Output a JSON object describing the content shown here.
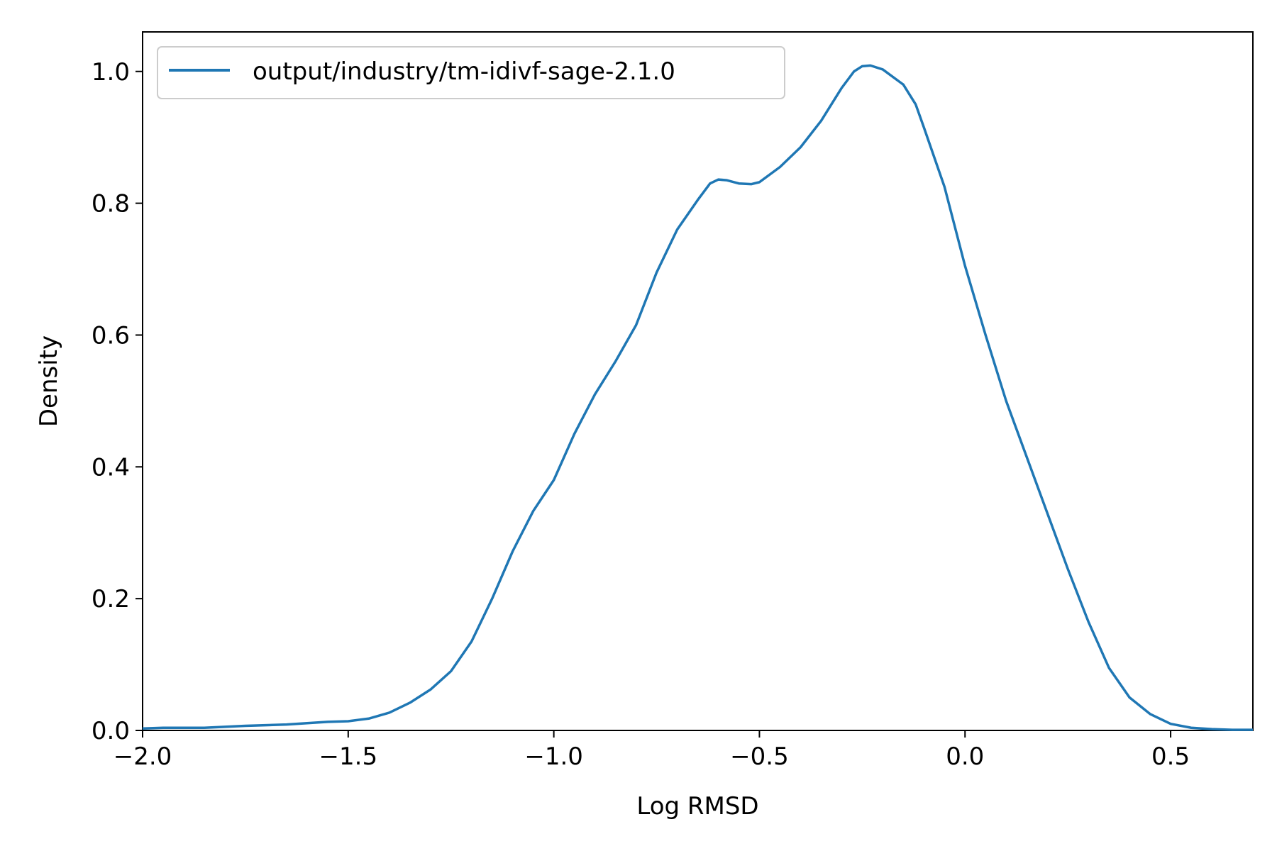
{
  "chart_data": {
    "type": "line",
    "title": "",
    "xlabel": "Log RMSD",
    "ylabel": "Density",
    "xlim": [
      -2.0,
      0.7
    ],
    "ylim": [
      0.0,
      1.06
    ],
    "x_ticks": [
      -2.0,
      -1.5,
      -1.0,
      -0.5,
      0.0,
      0.5
    ],
    "x_tick_labels": [
      "−2.0",
      "−1.5",
      "−1.0",
      "−0.5",
      "0.0",
      "0.5"
    ],
    "y_ticks": [
      0.0,
      0.2,
      0.4,
      0.6,
      0.8,
      1.0
    ],
    "y_tick_labels": [
      "0.0",
      "0.2",
      "0.4",
      "0.6",
      "0.8",
      "1.0"
    ],
    "grid": false,
    "legend_position": "upper-left",
    "colors": {
      "series_line": "#1f77b4",
      "axes": "#000000",
      "legend_border": "#cccccc"
    },
    "series": [
      {
        "name": "output/industry/tm-idivf-sage-2.1.0",
        "color": "#1f77b4",
        "points": [
          [
            -2.0,
            0.003
          ],
          [
            -1.95,
            0.004
          ],
          [
            -1.85,
            0.004
          ],
          [
            -1.75,
            0.007
          ],
          [
            -1.65,
            0.009
          ],
          [
            -1.6,
            0.011
          ],
          [
            -1.55,
            0.013
          ],
          [
            -1.5,
            0.014
          ],
          [
            -1.45,
            0.018
          ],
          [
            -1.4,
            0.027
          ],
          [
            -1.35,
            0.042
          ],
          [
            -1.3,
            0.062
          ],
          [
            -1.25,
            0.09
          ],
          [
            -1.2,
            0.135
          ],
          [
            -1.15,
            0.2
          ],
          [
            -1.1,
            0.272
          ],
          [
            -1.05,
            0.333
          ],
          [
            -1.0,
            0.38
          ],
          [
            -0.95,
            0.45
          ],
          [
            -0.9,
            0.51
          ],
          [
            -0.85,
            0.56
          ],
          [
            -0.8,
            0.615
          ],
          [
            -0.75,
            0.695
          ],
          [
            -0.7,
            0.76
          ],
          [
            -0.65,
            0.805
          ],
          [
            -0.62,
            0.83
          ],
          [
            -0.6,
            0.836
          ],
          [
            -0.58,
            0.835
          ],
          [
            -0.55,
            0.83
          ],
          [
            -0.52,
            0.829
          ],
          [
            -0.5,
            0.832
          ],
          [
            -0.45,
            0.855
          ],
          [
            -0.4,
            0.885
          ],
          [
            -0.35,
            0.925
          ],
          [
            -0.3,
            0.975
          ],
          [
            -0.27,
            1.0
          ],
          [
            -0.25,
            1.008
          ],
          [
            -0.23,
            1.009
          ],
          [
            -0.2,
            1.003
          ],
          [
            -0.15,
            0.98
          ],
          [
            -0.12,
            0.95
          ],
          [
            -0.1,
            0.915
          ],
          [
            -0.05,
            0.825
          ],
          [
            0.0,
            0.705
          ],
          [
            0.05,
            0.6
          ],
          [
            0.1,
            0.5
          ],
          [
            0.15,
            0.415
          ],
          [
            0.2,
            0.33
          ],
          [
            0.25,
            0.245
          ],
          [
            0.3,
            0.165
          ],
          [
            0.35,
            0.095
          ],
          [
            0.4,
            0.05
          ],
          [
            0.45,
            0.025
          ],
          [
            0.5,
            0.01
          ],
          [
            0.55,
            0.004
          ],
          [
            0.6,
            0.002
          ],
          [
            0.65,
            0.001
          ],
          [
            0.7,
            0.001
          ]
        ]
      }
    ]
  }
}
